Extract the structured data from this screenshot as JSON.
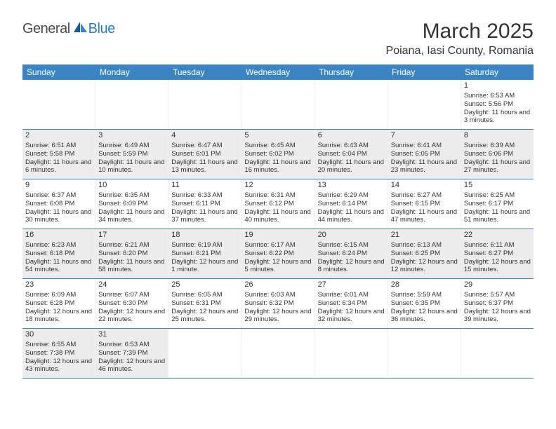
{
  "logo": {
    "main": "General",
    "accent": "Blue"
  },
  "title": "March 2025",
  "location": "Poiana, Iasi County, Romania",
  "colors": {
    "header_bg": "#3b84c4",
    "alt_bg": "#ececec",
    "border": "#3b84c4",
    "text": "#333333"
  },
  "weekdays": [
    "Sunday",
    "Monday",
    "Tuesday",
    "Wednesday",
    "Thursday",
    "Friday",
    "Saturday"
  ],
  "weeks": [
    [
      null,
      null,
      null,
      null,
      null,
      null,
      {
        "n": "1",
        "sr": "6:53 AM",
        "ss": "5:56 PM",
        "dl": "11 hours and 3 minutes."
      }
    ],
    [
      {
        "n": "2",
        "sr": "6:51 AM",
        "ss": "5:58 PM",
        "dl": "11 hours and 6 minutes."
      },
      {
        "n": "3",
        "sr": "6:49 AM",
        "ss": "5:59 PM",
        "dl": "11 hours and 10 minutes."
      },
      {
        "n": "4",
        "sr": "6:47 AM",
        "ss": "6:01 PM",
        "dl": "11 hours and 13 minutes."
      },
      {
        "n": "5",
        "sr": "6:45 AM",
        "ss": "6:02 PM",
        "dl": "11 hours and 16 minutes."
      },
      {
        "n": "6",
        "sr": "6:43 AM",
        "ss": "6:04 PM",
        "dl": "11 hours and 20 minutes."
      },
      {
        "n": "7",
        "sr": "6:41 AM",
        "ss": "6:05 PM",
        "dl": "11 hours and 23 minutes."
      },
      {
        "n": "8",
        "sr": "6:39 AM",
        "ss": "6:06 PM",
        "dl": "11 hours and 27 minutes."
      }
    ],
    [
      {
        "n": "9",
        "sr": "6:37 AM",
        "ss": "6:08 PM",
        "dl": "11 hours and 30 minutes."
      },
      {
        "n": "10",
        "sr": "6:35 AM",
        "ss": "6:09 PM",
        "dl": "11 hours and 34 minutes."
      },
      {
        "n": "11",
        "sr": "6:33 AM",
        "ss": "6:11 PM",
        "dl": "11 hours and 37 minutes."
      },
      {
        "n": "12",
        "sr": "6:31 AM",
        "ss": "6:12 PM",
        "dl": "11 hours and 40 minutes."
      },
      {
        "n": "13",
        "sr": "6:29 AM",
        "ss": "6:14 PM",
        "dl": "11 hours and 44 minutes."
      },
      {
        "n": "14",
        "sr": "6:27 AM",
        "ss": "6:15 PM",
        "dl": "11 hours and 47 minutes."
      },
      {
        "n": "15",
        "sr": "6:25 AM",
        "ss": "6:17 PM",
        "dl": "11 hours and 51 minutes."
      }
    ],
    [
      {
        "n": "16",
        "sr": "6:23 AM",
        "ss": "6:18 PM",
        "dl": "11 hours and 54 minutes."
      },
      {
        "n": "17",
        "sr": "6:21 AM",
        "ss": "6:20 PM",
        "dl": "11 hours and 58 minutes."
      },
      {
        "n": "18",
        "sr": "6:19 AM",
        "ss": "6:21 PM",
        "dl": "12 hours and 1 minute."
      },
      {
        "n": "19",
        "sr": "6:17 AM",
        "ss": "6:22 PM",
        "dl": "12 hours and 5 minutes."
      },
      {
        "n": "20",
        "sr": "6:15 AM",
        "ss": "6:24 PM",
        "dl": "12 hours and 8 minutes."
      },
      {
        "n": "21",
        "sr": "6:13 AM",
        "ss": "6:25 PM",
        "dl": "12 hours and 12 minutes."
      },
      {
        "n": "22",
        "sr": "6:11 AM",
        "ss": "6:27 PM",
        "dl": "12 hours and 15 minutes."
      }
    ],
    [
      {
        "n": "23",
        "sr": "6:09 AM",
        "ss": "6:28 PM",
        "dl": "12 hours and 18 minutes."
      },
      {
        "n": "24",
        "sr": "6:07 AM",
        "ss": "6:30 PM",
        "dl": "12 hours and 22 minutes."
      },
      {
        "n": "25",
        "sr": "6:05 AM",
        "ss": "6:31 PM",
        "dl": "12 hours and 25 minutes."
      },
      {
        "n": "26",
        "sr": "6:03 AM",
        "ss": "6:32 PM",
        "dl": "12 hours and 29 minutes."
      },
      {
        "n": "27",
        "sr": "6:01 AM",
        "ss": "6:34 PM",
        "dl": "12 hours and 32 minutes."
      },
      {
        "n": "28",
        "sr": "5:59 AM",
        "ss": "6:35 PM",
        "dl": "12 hours and 36 minutes."
      },
      {
        "n": "29",
        "sr": "5:57 AM",
        "ss": "6:37 PM",
        "dl": "12 hours and 39 minutes."
      }
    ],
    [
      {
        "n": "30",
        "sr": "6:55 AM",
        "ss": "7:38 PM",
        "dl": "12 hours and 43 minutes."
      },
      {
        "n": "31",
        "sr": "6:53 AM",
        "ss": "7:39 PM",
        "dl": "12 hours and 46 minutes."
      },
      null,
      null,
      null,
      null,
      null
    ]
  ],
  "labels": {
    "sunrise": "Sunrise:",
    "sunset": "Sunset:",
    "daylight": "Daylight:"
  }
}
